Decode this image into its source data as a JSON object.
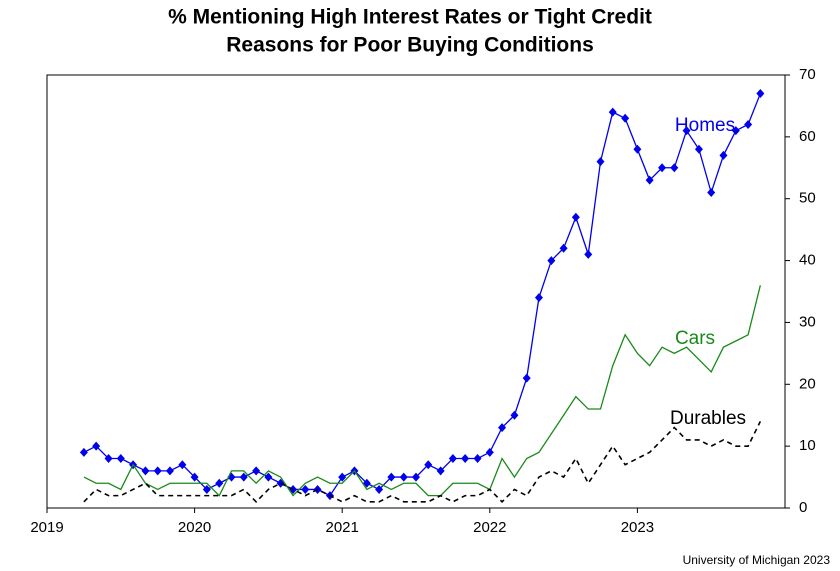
{
  "chart_data": {
    "type": "line",
    "title": [
      "% Mentioning High Interest Rates or Tight Credit",
      "Reasons for Poor Buying Conditions"
    ],
    "source": "University of Michigan 2023",
    "x": [
      2019.25,
      2019.333,
      2019.417,
      2019.5,
      2019.583,
      2019.667,
      2019.75,
      2019.833,
      2019.917,
      2020,
      2020.083,
      2020.167,
      2020.25,
      2020.333,
      2020.417,
      2020.5,
      2020.583,
      2020.667,
      2020.75,
      2020.833,
      2020.917,
      2021,
      2021.083,
      2021.167,
      2021.25,
      2021.333,
      2021.417,
      2021.5,
      2021.583,
      2021.667,
      2021.75,
      2021.833,
      2021.917,
      2022,
      2022.083,
      2022.167,
      2022.25,
      2022.333,
      2022.417,
      2022.5,
      2022.583,
      2022.667,
      2022.75,
      2022.833,
      2022.917,
      2023,
      2023.083,
      2023.167,
      2023.25,
      2023.333,
      2023.417,
      2023.5,
      2023.583,
      2023.667,
      2023.75,
      2023.833
    ],
    "series": [
      {
        "name": "Homes",
        "color": "#0000ee",
        "marker": "diamond",
        "dashed": false,
        "values": [
          9,
          10,
          8,
          8,
          7,
          6,
          6,
          6,
          7,
          5,
          3,
          4,
          5,
          5,
          6,
          5,
          4,
          3,
          3,
          3,
          2,
          5,
          6,
          4,
          3,
          5,
          5,
          5,
          7,
          6,
          8,
          8,
          8,
          9,
          13,
          15,
          21,
          34,
          40,
          42,
          47,
          41,
          56,
          64,
          63,
          58,
          53,
          55,
          55,
          61,
          58,
          51,
          57,
          61,
          62,
          67
        ]
      },
      {
        "name": "Cars",
        "color": "#1a8a1a",
        "marker": null,
        "dashed": false,
        "values": [
          5,
          4,
          4,
          3,
          7,
          4,
          3,
          4,
          4,
          4,
          4,
          2,
          6,
          6,
          4,
          6,
          5,
          2,
          4,
          5,
          4,
          4,
          6,
          3,
          4,
          3,
          4,
          4,
          2,
          2,
          4,
          4,
          4,
          3,
          8,
          5,
          8,
          9,
          12,
          15,
          18,
          16,
          16,
          23,
          28,
          25,
          23,
          26,
          25,
          26,
          24,
          22,
          26,
          27,
          28,
          36
        ]
      },
      {
        "name": "Durables",
        "color": "#000000",
        "marker": null,
        "dashed": true,
        "values": [
          1,
          3,
          2,
          2,
          3,
          4,
          2,
          2,
          2,
          2,
          2,
          2,
          2,
          3,
          1,
          3,
          4,
          3,
          2,
          3,
          2,
          1,
          2,
          1,
          1,
          2,
          1,
          1,
          1,
          2,
          1,
          2,
          2,
          3,
          1,
          3,
          2,
          5,
          6,
          5,
          8,
          4,
          7,
          10,
          7,
          8,
          9,
          11,
          13,
          11,
          11,
          10,
          11,
          10,
          10,
          14
        ]
      }
    ],
    "xlim": [
      2019,
      2024
    ],
    "xticks": [
      2019,
      2020,
      2021,
      2022,
      2023
    ],
    "ylim": [
      0,
      70
    ],
    "yticks": [
      0,
      10,
      20,
      30,
      40,
      50,
      60,
      70
    ],
    "grid": false
  }
}
